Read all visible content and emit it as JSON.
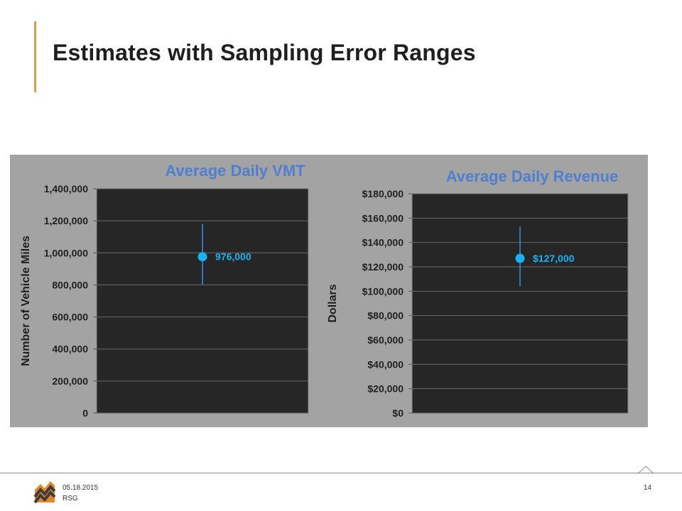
{
  "slide": {
    "title": "Estimates with Sampling Error Ranges",
    "accent_color": "#d9a04a"
  },
  "footer": {
    "date": "05.18.2015",
    "org": "RSG",
    "page_number": "14",
    "logo_icon": "rsg-mountain-logo-icon"
  },
  "chart_data": [
    {
      "type": "scatter",
      "title": "Average Daily VMT",
      "xlabel": "",
      "ylabel": "Number of Vehicle Miles",
      "ylim": [
        0,
        1400000
      ],
      "yticks": [
        0,
        200000,
        400000,
        600000,
        800000,
        1000000,
        1200000,
        1400000
      ],
      "ytick_labels": [
        "0",
        "200,000",
        "400,000",
        "600,000",
        "800,000",
        "1,000,000",
        "1,200,000",
        "1,400,000"
      ],
      "grid": true,
      "point": {
        "value": 976000,
        "error_low": 800000,
        "error_high": 1180000,
        "label": "976,000"
      },
      "title_color": "#4f7fd0",
      "plot_bg": "#262626",
      "marker_color": "#1ab2f5",
      "error_color": "#2d77b8"
    },
    {
      "type": "scatter",
      "title": "Average Daily Revenue",
      "xlabel": "",
      "ylabel": "Dollars",
      "ylim": [
        0,
        180000
      ],
      "yticks": [
        0,
        20000,
        40000,
        60000,
        80000,
        100000,
        120000,
        140000,
        160000,
        180000
      ],
      "ytick_labels": [
        "$0",
        "$20,000",
        "$40,000",
        "$60,000",
        "$80,000",
        "$100,000",
        "$120,000",
        "$140,000",
        "$160,000",
        "$180,000"
      ],
      "grid": true,
      "point": {
        "value": 127000,
        "error_low": 104000,
        "error_high": 153000,
        "label": "$127,000"
      },
      "title_color": "#4f7fd0",
      "plot_bg": "#262626",
      "marker_color": "#1ab2f5",
      "error_color": "#2d77b8"
    }
  ]
}
